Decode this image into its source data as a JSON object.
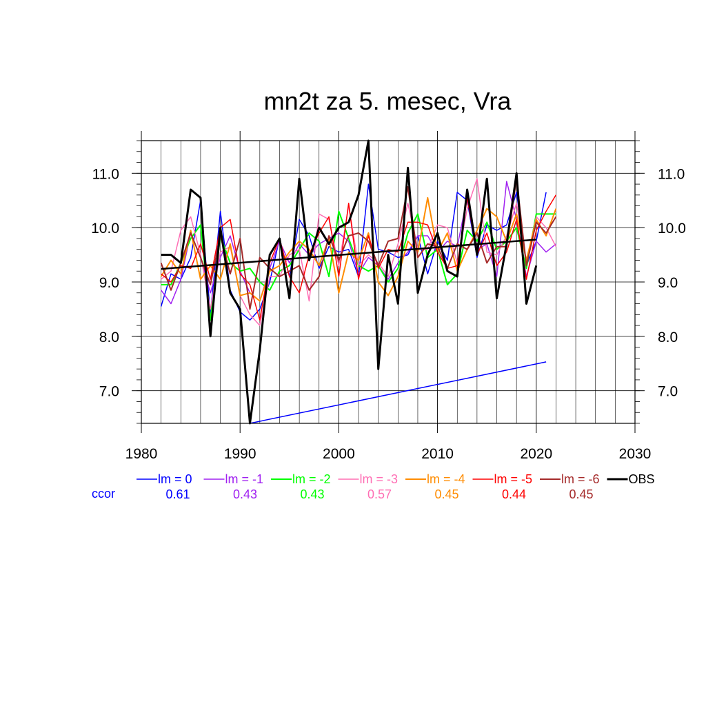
{
  "chart_data": {
    "type": "line",
    "title": "mn2t za 5. mesec, Vra",
    "xlabel": "",
    "ylabel": "",
    "xlim": [
      1980,
      2030
    ],
    "ylim": [
      6.4,
      11.6
    ],
    "xticks": [
      1980,
      1990,
      2000,
      2010,
      2020,
      2030
    ],
    "xtick_labels": [
      "1980",
      "1990",
      "2000",
      "2010",
      "2020",
      "2030"
    ],
    "yticks": [
      7.0,
      8.0,
      9.0,
      10.0,
      11.0
    ],
    "ytick_labels": [
      "7.0",
      "8.0",
      "9.0",
      "10.0",
      "11.0"
    ],
    "grid": true,
    "legend_position": "bottom",
    "series": [
      {
        "name": "lm = 0",
        "color": "#0000ff",
        "width": 1.5,
        "x": [
          1982,
          1983,
          1984,
          1985,
          1986,
          1987,
          1988,
          1989,
          1990,
          1991,
          1992,
          1993,
          1994,
          1995,
          1996,
          1997,
          1998,
          1999,
          2000,
          2001,
          2002,
          2003,
          2004,
          2005,
          2006,
          2007,
          2008,
          2009,
          2010,
          2011,
          2012,
          2013,
          2014,
          2015,
          2016,
          2017,
          2018,
          2019,
          2020,
          2021
        ],
        "y": [
          8.55,
          9.15,
          9.05,
          9.45,
          10.5,
          8.4,
          10.3,
          8.85,
          8.45,
          8.3,
          8.5,
          9.0,
          9.8,
          9.1,
          10.15,
          9.85,
          9.25,
          9.65,
          9.55,
          9.6,
          9.1,
          10.8,
          9.6,
          9.55,
          9.45,
          9.5,
          9.85,
          9.15,
          9.75,
          9.4,
          10.65,
          10.5,
          9.45,
          10.05,
          9.95,
          10.05,
          10.65,
          9.3,
          9.75,
          10.65
        ]
      },
      {
        "name": "lm = -1",
        "color": "#a020f0",
        "width": 1.5,
        "x": [
          1982,
          1983,
          1984,
          1985,
          1986,
          1987,
          1988,
          1989,
          1990,
          1991,
          1992,
          1993,
          1994,
          1995,
          1996,
          1997,
          1998,
          1999,
          2000,
          2001,
          2002,
          2003,
          2004,
          2005,
          2006,
          2007,
          2008,
          2009,
          2010,
          2011,
          2012,
          2013,
          2014,
          2015,
          2016,
          2017,
          2018,
          2019,
          2020,
          2021,
          2022
        ],
        "y": [
          8.85,
          8.6,
          9.05,
          9.9,
          9.45,
          8.8,
          9.45,
          9.85,
          9.2,
          8.8,
          8.65,
          9.25,
          9.75,
          9.35,
          9.7,
          9.5,
          9.7,
          9.8,
          9.9,
          9.75,
          9.15,
          9.45,
          9.3,
          9.05,
          9.35,
          9.55,
          9.85,
          9.85,
          9.55,
          9.75,
          9.65,
          10.55,
          9.6,
          9.7,
          9.1,
          10.85,
          10.15,
          9.1,
          9.75,
          9.55,
          9.7
        ]
      },
      {
        "name": "lm = -2",
        "color": "#00ff00",
        "width": 2,
        "x": [
          1982,
          1983,
          1984,
          1985,
          1986,
          1987,
          1988,
          1989,
          1990,
          1991,
          1992,
          1993,
          1994,
          1995,
          1996,
          1997,
          1998,
          1999,
          2000,
          2001,
          2002,
          2003,
          2004,
          2005,
          2006,
          2007,
          2008,
          2009,
          2010,
          2011,
          2012,
          2013,
          2014,
          2015,
          2016,
          2017,
          2018,
          2019,
          2020,
          2021,
          2022
        ],
        "y": [
          8.95,
          8.95,
          9.35,
          9.8,
          10.05,
          8.3,
          9.85,
          9.35,
          9.2,
          9.25,
          9.0,
          8.85,
          9.2,
          9.3,
          9.6,
          9.9,
          9.75,
          9.1,
          10.3,
          9.8,
          9.3,
          9.2,
          9.3,
          9.0,
          9.25,
          9.9,
          10.25,
          9.45,
          9.6,
          8.95,
          9.15,
          9.95,
          9.75,
          10.1,
          9.6,
          9.75,
          10.0,
          9.25,
          10.25,
          10.25,
          10.25
        ]
      },
      {
        "name": "lm = -3",
        "color": "#ff6eb4",
        "width": 1.5,
        "x": [
          1982,
          1983,
          1984,
          1985,
          1986,
          1987,
          1988,
          1989,
          1990,
          1991,
          1992,
          1993,
          1994,
          1995,
          1996,
          1997,
          1998,
          1999,
          2000,
          2001,
          2002,
          2003,
          2004,
          2005,
          2006,
          2007,
          2008,
          2009,
          2010,
          2011,
          2012,
          2013,
          2014,
          2015,
          2016,
          2017,
          2018,
          2019,
          2020,
          2021,
          2022
        ],
        "y": [
          9.05,
          9.2,
          9.95,
          10.2,
          9.5,
          8.5,
          9.55,
          9.65,
          8.75,
          8.4,
          8.2,
          9.1,
          9.1,
          9.5,
          9.6,
          8.65,
          10.25,
          10.15,
          9.3,
          10.4,
          9.3,
          9.5,
          9.35,
          9.1,
          9.7,
          10.45,
          9.6,
          9.6,
          10.05,
          10.0,
          9.35,
          10.35,
          10.9,
          9.55,
          9.5,
          9.85,
          10.45,
          9.35,
          10.2,
          10.0,
          9.65
        ]
      },
      {
        "name": "lm = -4",
        "color": "#ff8c00",
        "width": 2,
        "x": [
          1982,
          1983,
          1984,
          1985,
          1986,
          1987,
          1988,
          1989,
          1990,
          1991,
          1992,
          1993,
          1994,
          1995,
          1996,
          1997,
          1998,
          1999,
          2000,
          2001,
          2002,
          2003,
          2004,
          2005,
          2006,
          2007,
          2008,
          2009,
          2010,
          2011,
          2012,
          2013,
          2014,
          2015,
          2016,
          2017,
          2018,
          2019,
          2020,
          2021,
          2022
        ],
        "y": [
          9.1,
          9.4,
          9.15,
          9.95,
          9.05,
          9.3,
          9.05,
          9.7,
          8.75,
          8.8,
          8.65,
          9.2,
          9.3,
          9.55,
          9.75,
          9.6,
          9.3,
          9.8,
          8.8,
          9.55,
          9.4,
          9.9,
          9.0,
          8.75,
          9.1,
          9.75,
          9.55,
          10.55,
          9.55,
          9.9,
          9.2,
          9.6,
          9.95,
          10.35,
          10.2,
          9.75,
          10.25,
          9.4,
          10.15,
          9.85,
          10.35
        ]
      },
      {
        "name": "lm = -5",
        "color": "#ff0000",
        "width": 1.5,
        "x": [
          1982,
          1983,
          1984,
          1985,
          1986,
          1987,
          1988,
          1989,
          1990,
          1991,
          1992,
          1993,
          1994,
          1995,
          1996,
          1997,
          1998,
          1999,
          2000,
          2001,
          2002,
          2003,
          2004,
          2005,
          2006,
          2007,
          2008,
          2009,
          2010,
          2011,
          2012,
          2013,
          2014,
          2015,
          2016,
          2017,
          2018,
          2019,
          2020,
          2021,
          2022
        ],
        "y": [
          9.15,
          9.0,
          9.3,
          9.25,
          9.7,
          9.05,
          10.0,
          10.15,
          9.15,
          8.95,
          8.3,
          9.35,
          9.8,
          9.1,
          8.8,
          9.5,
          9.9,
          10.2,
          9.1,
          10.45,
          9.05,
          9.85,
          9.25,
          9.6,
          9.55,
          10.1,
          10.1,
          10.05,
          9.55,
          9.25,
          9.3,
          10.55,
          9.5,
          9.9,
          9.3,
          9.55,
          10.15,
          9.05,
          9.95,
          10.3,
          10.6
        ]
      },
      {
        "name": "lm = -6",
        "color": "#a52a2a",
        "width": 2,
        "x": [
          1982,
          1983,
          1984,
          1985,
          1986,
          1987,
          1988,
          1989,
          1990,
          1991,
          1992,
          1993,
          1994,
          1995,
          1996,
          1997,
          1998,
          1999,
          2000,
          2001,
          2002,
          2003,
          2004,
          2005,
          2006,
          2007,
          2008,
          2009,
          2010,
          2011,
          2012,
          2013,
          2014,
          2015,
          2016,
          2017,
          2018,
          2019,
          2020,
          2021,
          2022
        ],
        "y": [
          9.35,
          8.85,
          9.35,
          9.9,
          9.45,
          8.95,
          9.85,
          9.15,
          9.8,
          8.5,
          9.45,
          9.25,
          9.1,
          9.2,
          9.3,
          8.85,
          9.1,
          9.85,
          9.4,
          9.85,
          9.9,
          9.75,
          9.3,
          9.75,
          9.8,
          10.75,
          9.45,
          9.7,
          9.65,
          9.25,
          9.7,
          9.6,
          9.9,
          9.35,
          9.65,
          9.65,
          10.9,
          9.3,
          10.1,
          9.9,
          10.2
        ]
      },
      {
        "name": "OBS",
        "color": "#000000",
        "width": 3,
        "x": [
          1982,
          1983,
          1984,
          1985,
          1986,
          1987,
          1988,
          1989,
          1990,
          1991,
          1992,
          1993,
          1994,
          1995,
          1996,
          1997,
          1998,
          1999,
          2000,
          2001,
          2002,
          2003,
          2004,
          2005,
          2006,
          2007,
          2008,
          2009,
          2010,
          2011,
          2012,
          2013,
          2014,
          2015,
          2016,
          2017,
          2018,
          2019,
          2020
        ],
        "y": [
          9.5,
          9.5,
          9.35,
          10.7,
          10.55,
          8.0,
          10.0,
          8.8,
          8.5,
          6.4,
          7.75,
          9.5,
          9.8,
          8.7,
          10.9,
          9.4,
          10.0,
          9.7,
          10.0,
          10.1,
          10.6,
          11.6,
          7.4,
          9.5,
          8.6,
          11.1,
          8.8,
          9.5,
          9.9,
          9.2,
          9.1,
          10.7,
          9.5,
          10.9,
          8.7,
          9.7,
          11.0,
          8.6,
          9.3
        ]
      }
    ],
    "trend_lines": [
      {
        "color": "#000000",
        "width": 2.5,
        "x": [
          1982,
          2020
        ],
        "y": [
          9.24,
          9.78
        ]
      },
      {
        "color": "#0000ff",
        "width": 1.5,
        "x": [
          1991,
          2021
        ],
        "y": [
          6.4,
          7.53
        ]
      }
    ],
    "ccor": {
      "label": "ccor",
      "label_color": "#0000ff",
      "values": [
        "0.61",
        "0.43",
        "0.43",
        "0.57",
        "0.45",
        "0.44",
        "0.45"
      ]
    }
  }
}
